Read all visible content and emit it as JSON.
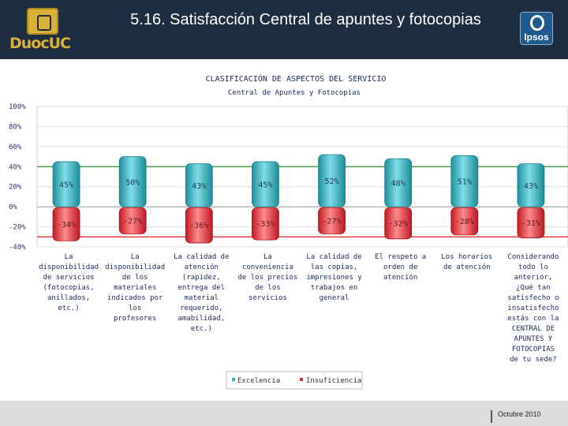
{
  "header": {
    "title": "5.16. Satisfacción Central de apuntes y fotocopias",
    "logo_text": "DuocUC",
    "ipsos_label": "Ipsos"
  },
  "footer": {
    "date": "Octubre 2010"
  },
  "colors": {
    "excelencia": "#2ab0bd",
    "insuficiencia": "#e53238",
    "header_bg": "#1e2d40",
    "ref_green": "#2f8a2f",
    "ref_red": "#e02020"
  },
  "chart_data": {
    "type": "bar",
    "title": "CLASIFICACIÓN DE ASPECTOS DEL SERVICIO",
    "subtitle": "Central de Apuntes y Fotocopias",
    "ylim": [
      -40,
      100
    ],
    "yticks": [
      "100%",
      "80%",
      "60%",
      "40%",
      "20%",
      "0%",
      "-20%",
      "-40%"
    ],
    "reference_lines": [
      40,
      -30
    ],
    "grid": true,
    "legend_position": "bottom",
    "categories": [
      [
        "La",
        "disponibilidad",
        "de servicios",
        "(fotocopias,",
        "anillados,",
        "etc.)"
      ],
      [
        "La",
        "disponibilidad",
        "de los",
        "materiales",
        "indicados por",
        "los",
        "profesores"
      ],
      [
        "La calidad de",
        "atención",
        "(rapidez,",
        "entrega del",
        "material",
        "requerido,",
        "amabilidad,",
        "etc.)"
      ],
      [
        "La",
        "conveniencia",
        "de los precios",
        "de los",
        "servicios"
      ],
      [
        "La calidad de",
        "las copias,",
        "impresiones y",
        "trabajos en",
        "general"
      ],
      [
        "El respeto a",
        "orden de",
        "atención"
      ],
      [
        "Los horarios",
        "de atención"
      ],
      [
        "Considerando",
        "todo lo",
        "anterior,",
        "¿Qué tan",
        "satisfecho o",
        "insatisfecho",
        "estás con la",
        "CENTRAL DE",
        "APUNTES Y",
        "FOTOCOPIAS",
        "de tu sede?"
      ]
    ],
    "series": [
      {
        "name": "Excelencia",
        "values": [
          45,
          50,
          43,
          45,
          52,
          48,
          51,
          43
        ],
        "labels": [
          "45%",
          "50%",
          "43%",
          "45%",
          "52%",
          "48%",
          "51%",
          "43%"
        ]
      },
      {
        "name": "Insuficiencia",
        "values": [
          -34,
          -27,
          -36,
          -33,
          -27,
          -32,
          -28,
          -31
        ],
        "labels": [
          "-34%",
          "-27%",
          "-36%",
          "-33%",
          "-27%",
          "-32%",
          "-28%",
          "-31%"
        ]
      }
    ]
  }
}
